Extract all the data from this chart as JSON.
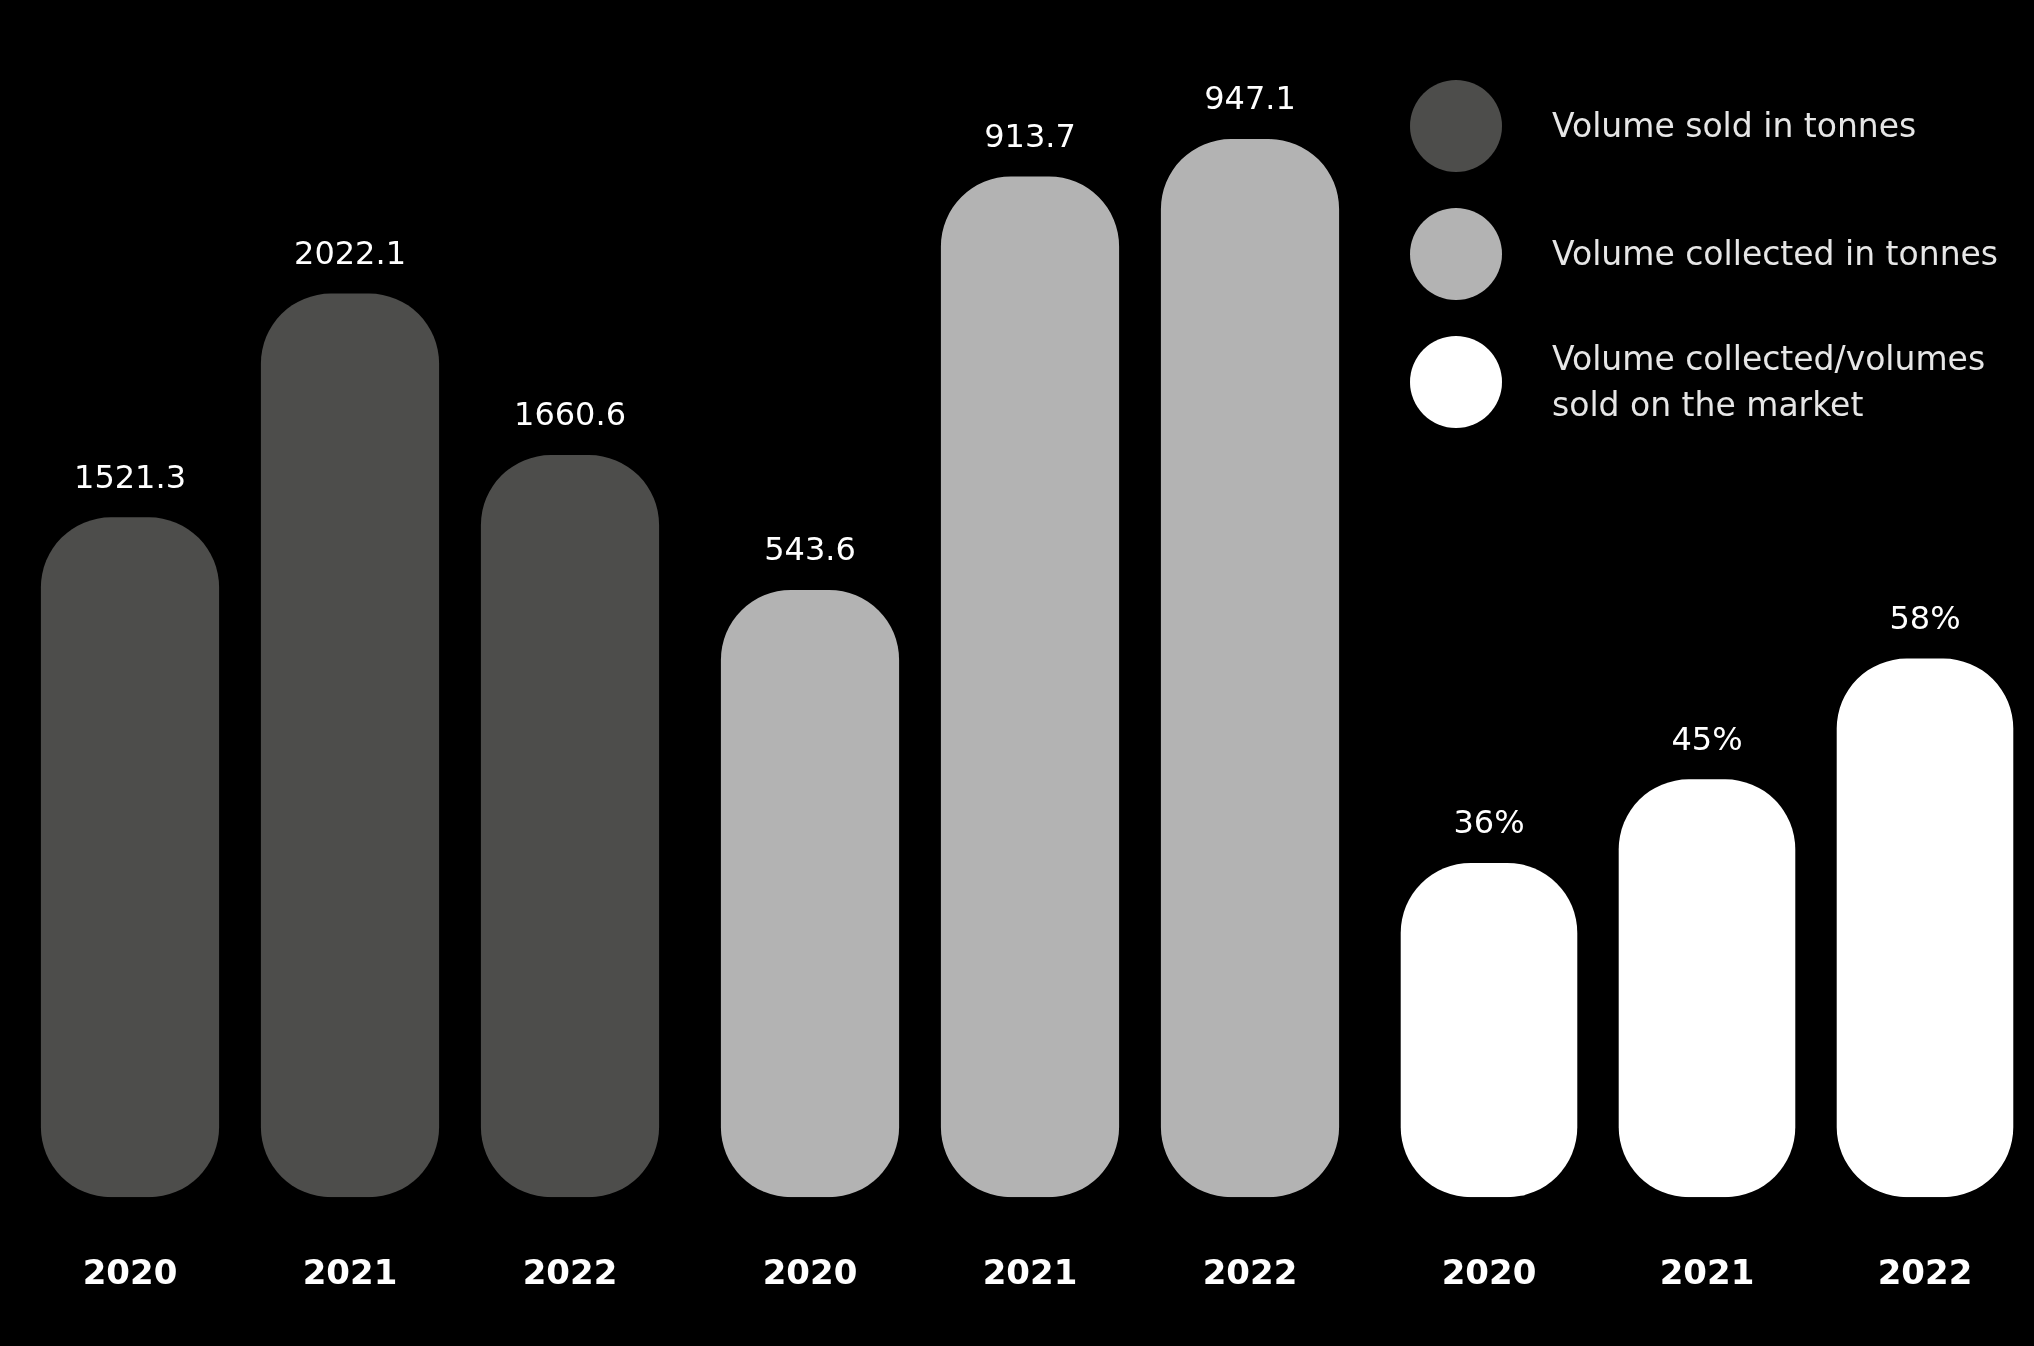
{
  "chart_data": [
    {
      "type": "bar",
      "categories": [
        "2020",
        "2021",
        "2022"
      ],
      "legend": "top right",
      "series": [
        {
          "name": "Volume sold in tonnes",
          "color": "#4d4d4b",
          "values": [
            1521.3,
            2022.1,
            1660.6
          ],
          "value_labels": [
            "1521.3",
            "2022.1",
            "1660.6"
          ]
        }
      ]
    },
    {
      "type": "bar",
      "categories": [
        "2020",
        "2021",
        "2022"
      ],
      "legend": "top right",
      "series": [
        {
          "name": "Volume collected in tonnes",
          "color": "#b3b3b3",
          "values": [
            543.6,
            913.7,
            947.1
          ],
          "value_labels": [
            "543.6",
            "913.7",
            "947.1"
          ]
        }
      ]
    },
    {
      "type": "bar",
      "categories": [
        "2020",
        "2021",
        "2022"
      ],
      "legend": "top right",
      "series": [
        {
          "name": "Volume collected/volumes sold on the market",
          "color": "#ffffff",
          "values": [
            36,
            45,
            58
          ],
          "value_labels": [
            "36%",
            "45%",
            "58%"
          ]
        }
      ]
    }
  ]
}
